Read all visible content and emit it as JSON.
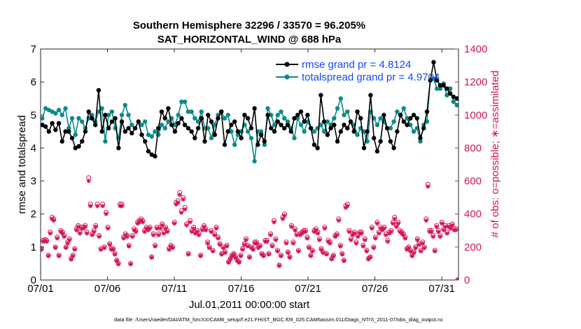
{
  "chart_data": {
    "type": "line",
    "title": "Southern Hemisphere 32296 / 33570 = 96.205%",
    "subtitle": "SAT_HORIZONTAL_WIND @ 688 hPa",
    "xlabel": "Jul.01,2011 00:00:00 start",
    "ylabel": "rmse and totalspread",
    "y2label": "# of obs: o=possible; ∗=assimilated",
    "footnote": "data file: /Users/raeder/DAI/ATM_forcXX/CAM6_setup/f.e21.FHIST_BGC.f09_025.CAM6assim.011/Diags_NTrS_2011-07/obs_diag_output.nc",
    "xlim": [
      0,
      31.25
    ],
    "ylim": [
      0,
      7
    ],
    "y2lim": [
      0,
      1400
    ],
    "xticks": [
      0,
      5,
      10,
      15,
      20,
      25,
      30
    ],
    "xticklabels": [
      "07/01",
      "07/06",
      "07/11",
      "07/16",
      "07/21",
      "07/26",
      "07/31"
    ],
    "yticks": [
      0,
      1,
      2,
      3,
      4,
      5,
      6,
      7
    ],
    "yticklabels": [
      "0",
      "1",
      "2",
      "3",
      "4",
      "5",
      "6",
      "7"
    ],
    "y2ticks": [
      0,
      200,
      400,
      600,
      800,
      1000,
      1200,
      1400
    ],
    "y2ticklabels": [
      "0",
      "200",
      "400",
      "600",
      "800",
      "1000",
      "1200",
      "1400"
    ],
    "legend_location": "top-right",
    "colors": {
      "rmse": "#000000",
      "spread": "#0c8a8a",
      "obs": "#d4145a",
      "legend_text": "#1048ff"
    },
    "series": [
      {
        "name": "rmse grand pr = 4.8124",
        "color": "#000000",
        "values": [
          4.7,
          4.65,
          4.5,
          4.75,
          4.55,
          4.75,
          4.2,
          4.5,
          4.5,
          4.3,
          4.0,
          4.05,
          4.2,
          4.5,
          5.1,
          4.9,
          4.7,
          5.75,
          4.5,
          5.0,
          4.6,
          4.8,
          4.9,
          4.0,
          4.8,
          4.5,
          4.6,
          4.45,
          4.6,
          4.8,
          4.4,
          4.2,
          3.9,
          3.8,
          3.75,
          4.6,
          5.1,
          4.9,
          5.2,
          4.7,
          4.5,
          4.75,
          4.9,
          4.7,
          4.6,
          4.5,
          4.3,
          4.6,
          4.9,
          4.2,
          5.0,
          4.8,
          4.4,
          4.9,
          5.1,
          4.1,
          4.5,
          4.7,
          4.8,
          4.5,
          4.3,
          5.0,
          4.9,
          4.6,
          5.2,
          4.1,
          4.4,
          4.2,
          5.0,
          4.6,
          4.5,
          4.8,
          4.7,
          4.6,
          4.7,
          4.5,
          4.9,
          5.0,
          5.1,
          4.8,
          5.0,
          4.6,
          4.1,
          4.0,
          5.6,
          4.8,
          4.4,
          4.6,
          4.7,
          4.2,
          4.5,
          4.7,
          4.6,
          4.8,
          4.5,
          5.1,
          4.9,
          4.0,
          4.5,
          5.6,
          4.3,
          3.9,
          4.2,
          5.0,
          4.6,
          4.2,
          4.0,
          4.5,
          5.0,
          4.8,
          4.7,
          4.9,
          5.0,
          4.9,
          4.3,
          4.6,
          5.1,
          6.05,
          6.6,
          6.05,
          5.9,
          5.9,
          5.8,
          5.65,
          5.55,
          5.5
        ]
      },
      {
        "name": "totalspread grand pr = 4.9704",
        "color": "#0c8a8a",
        "values": [
          4.9,
          5.2,
          5.15,
          5.1,
          5.05,
          5.15,
          5.0,
          5.2,
          4.6,
          4.9,
          4.4,
          4.9,
          4.8,
          4.6,
          4.9,
          5.0,
          4.8,
          5.1,
          5.2,
          4.2,
          5.0,
          5.1,
          4.6,
          4.3,
          5.0,
          5.3,
          5.0,
          4.7,
          4.6,
          4.8,
          4.7,
          4.8,
          4.4,
          4.35,
          4.5,
          4.4,
          4.7,
          4.6,
          4.8,
          4.9,
          4.7,
          5.0,
          5.4,
          5.4,
          5.1,
          5.1,
          4.9,
          4.8,
          5.1,
          4.6,
          4.6,
          4.3,
          4.7,
          5.0,
          5.1,
          4.9,
          5.0,
          4.5,
          4.1,
          4.4,
          4.5,
          4.7,
          4.5,
          4.3,
          3.6,
          4.5,
          4.5,
          4.1,
          5.2,
          5.0,
          4.7,
          5.0,
          5.1,
          4.9,
          4.8,
          4.6,
          4.3,
          4.9,
          4.7,
          4.5,
          4.8,
          4.6,
          4.5,
          4.6,
          4.7,
          4.5,
          4.8,
          4.7,
          4.9,
          5.2,
          5.5,
          5.0,
          5.1,
          4.8,
          4.7,
          4.4,
          4.6,
          4.5,
          4.2,
          5.1,
          4.9,
          4.7,
          4.9,
          4.8,
          4.6,
          4.6,
          4.8,
          5.1,
          5.0,
          5.2,
          4.9,
          4.7,
          4.5,
          4.6,
          4.2,
          4.7,
          4.8,
          6.05,
          6.1,
          5.8,
          5.8,
          5.95,
          5.6,
          5.8,
          5.4,
          5.3
        ]
      },
      {
        "name": "# of obs possible",
        "color": "#d4145a",
        "values": [
          190,
          240,
          245,
          240,
          150,
          290,
          380,
          370,
          200,
          260,
          150,
          300,
          290,
          270,
          200,
          230,
          250,
          130,
          150,
          190,
          310,
          330,
          290,
          320,
          320,
          330,
          290,
          620,
          460,
          280,
          300,
          330,
          460,
          270,
          190,
          460,
          200,
          410,
          320,
          220,
          190,
          190,
          160,
          120,
          100,
          460,
          460,
          260,
          280,
          270,
          210,
          100,
          270,
          310,
          300,
          350,
          360,
          370,
          360,
          300,
          320,
          310,
          320,
          140,
          280,
          210,
          320,
          280,
          320,
          340,
          290,
          320,
          300,
          190,
          210,
          200,
          350,
          470,
          480,
          530,
          420,
          500,
          440,
          340,
          160,
          360,
          300,
          320,
          290,
          300,
          280,
          150,
          310,
          330,
          310,
          230,
          200,
          300,
          180,
          280,
          320,
          260,
          220,
          160,
          200,
          170,
          210,
          110,
          130,
          150,
          160,
          140,
          120,
          110,
          150,
          190,
          220,
          250,
          210,
          140,
          200,
          190,
          230,
          230,
          200,
          210,
          160,
          150,
          240,
          240,
          160,
          280,
          210,
          360,
          250,
          180,
          90,
          150,
          380,
          400,
          230,
          170,
          140,
          330,
          230,
          310,
          280,
          180,
          280,
          290,
          300,
          300,
          260,
          200,
          150,
          180,
          300,
          310,
          290,
          250,
          190,
          170,
          320,
          160,
          240,
          230,
          130,
          150,
          270,
          280,
          370,
          210,
          160,
          120,
          450,
          460,
          300,
          250,
          280,
          290,
          230,
          270,
          290,
          290,
          210,
          250,
          180,
          130,
          140,
          320,
          200,
          260,
          350,
          290,
          320,
          310,
          320,
          280,
          240,
          290,
          300,
          350,
          380,
          330,
          350,
          300,
          290,
          280,
          260,
          190,
          200,
          180,
          150,
          170,
          200,
          250,
          220,
          180,
          230,
          200,
          370,
          580,
          300,
          300,
          270,
          180,
          330,
          300,
          270,
          350,
          310,
          330,
          290,
          330,
          320,
          340,
          310,
          310,
          0
        ]
      },
      {
        "name": "# of obs assimilated",
        "color": "#d4145a",
        "values": [
          185,
          232,
          238,
          232,
          145,
          282,
          370,
          360,
          195,
          252,
          145,
          292,
          282,
          262,
          195,
          222,
          242,
          125,
          145,
          184,
          302,
          322,
          282,
          312,
          312,
          322,
          282,
          600,
          448,
          272,
          292,
          322,
          448,
          262,
          184,
          448,
          194,
          400,
          312,
          214,
          184,
          184,
          155,
          116,
          96,
          448,
          448,
          252,
          272,
          262,
          204,
          96,
          262,
          302,
          292,
          342,
          350,
          360,
          350,
          292,
          312,
          302,
          312,
          136,
          272,
          204,
          312,
          272,
          312,
          332,
          282,
          312,
          292,
          184,
          204,
          194,
          342,
          458,
          468,
          516,
          408,
          488,
          428,
          332,
          155,
          350,
          292,
          312,
          282,
          292,
          272,
          145,
          302,
          322,
          302,
          222,
          194,
          292,
          174,
          272,
          312,
          252,
          214,
          155,
          194,
          165,
          204,
          106,
          126,
          145,
          155,
          136,
          116,
          106,
          145,
          184,
          214,
          242,
          204,
          136,
          194,
          184,
          222,
          222,
          194,
          204,
          155,
          145,
          232,
          232,
          155,
          272,
          204,
          350,
          242,
          174,
          86,
          145,
          370,
          390,
          222,
          165,
          136,
          322,
          222,
          302,
          272,
          174,
          272,
          282,
          292,
          292,
          252,
          194,
          145,
          174,
          292,
          302,
          282,
          242,
          184,
          165,
          312,
          155,
          232,
          222,
          126,
          145,
          262,
          272,
          360,
          204,
          155,
          116,
          438,
          448,
          292,
          242,
          272,
          282,
          222,
          262,
          282,
          282,
          204,
          242,
          174,
          126,
          136,
          312,
          194,
          252,
          342,
          282,
          312,
          302,
          312,
          272,
          232,
          282,
          292,
          342,
          370,
          322,
          342,
          292,
          282,
          272,
          252,
          184,
          194,
          174,
          145,
          165,
          194,
          242,
          214,
          174,
          222,
          194,
          360,
          566,
          292,
          292,
          262,
          174,
          322,
          292,
          262,
          342,
          302,
          322,
          282,
          322,
          312,
          332,
          302,
          302,
          0
        ]
      }
    ]
  }
}
